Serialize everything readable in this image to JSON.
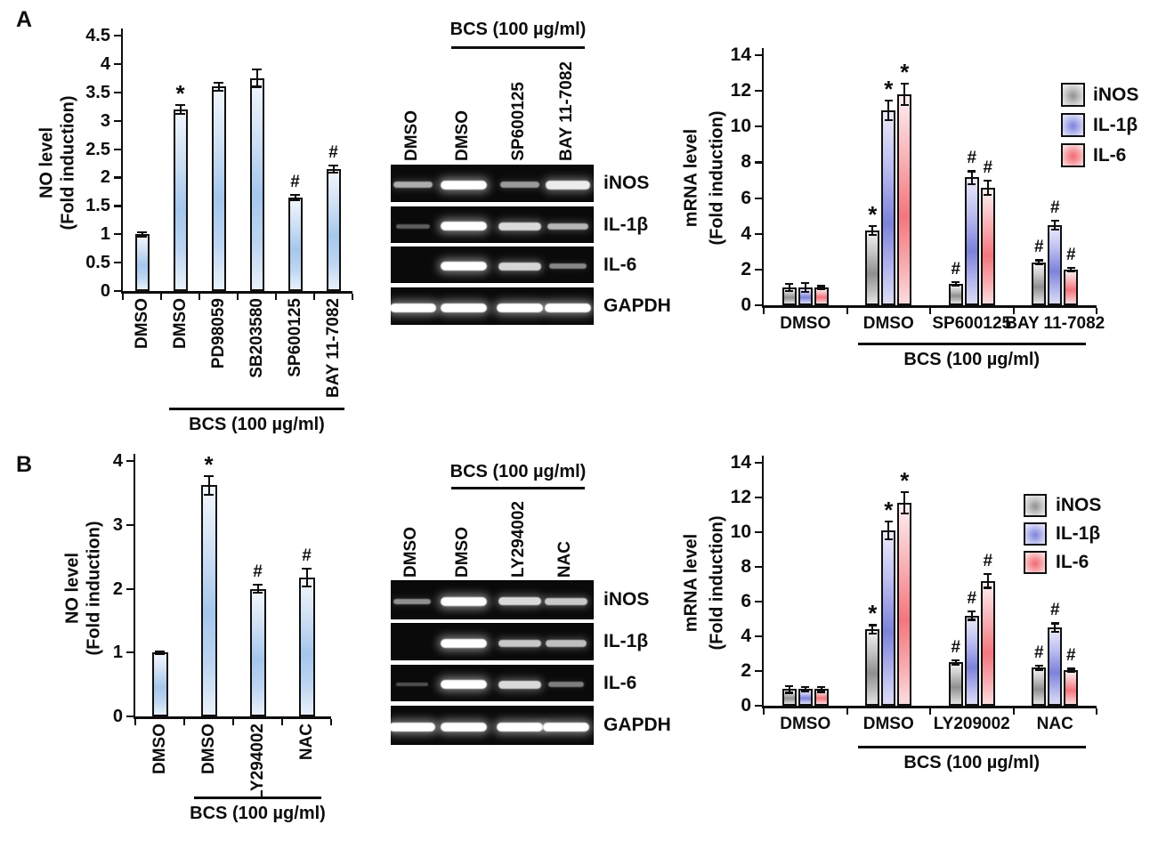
{
  "figure": {
    "panels": {
      "a": {
        "label": "A"
      },
      "b": {
        "label": "B"
      }
    }
  },
  "colors": {
    "axis": "#0d0d0d",
    "text": "#0d0d0d",
    "no_bar_mid_blue": "#a5c7ec",
    "inos_gray": "#8f8f8f",
    "il1b_purple": "#7d82da",
    "il6_red": "#f4767d",
    "gel_background": "#0a0a0a",
    "gel_band": "#ffffff"
  },
  "chart_data": [
    {
      "id": "panel_a_no_level",
      "type": "bar",
      "title": "",
      "ylabel": [
        "NO level",
        "(Fold induction)"
      ],
      "xlabel": "",
      "ylim": [
        0,
        4.5
      ],
      "yticks": [
        "0",
        "0.5",
        "1",
        "1.5",
        "2",
        "2.5",
        "3",
        "3.5",
        "4",
        "4.5"
      ],
      "grid": false,
      "categories": [
        "DMSO",
        "DMSO",
        "PD98059",
        "SB203580",
        "SP600125",
        "BAY 11-7082"
      ],
      "values": [
        1.0,
        3.2,
        3.6,
        3.75,
        1.65,
        2.15
      ],
      "errors": [
        0.04,
        0.08,
        0.07,
        0.15,
        0.05,
        0.06
      ],
      "sig": [
        "",
        "*",
        "",
        "",
        "#",
        "#"
      ],
      "bracket": {
        "from": 1,
        "to": 5,
        "label": "BCS (100 µg/ml)"
      }
    },
    {
      "id": "panel_a_mrna_level",
      "type": "bar",
      "title": "",
      "ylabel": [
        "mRNA level",
        "(Fold induction)"
      ],
      "xlabel": "",
      "ylim": [
        0,
        14
      ],
      "yticks": [
        "0",
        "2",
        "4",
        "6",
        "8",
        "10",
        "12",
        "14"
      ],
      "grid": false,
      "categories": [
        "DMSO",
        "DMSO",
        "SP600125",
        "BAY 11-7082"
      ],
      "series": [
        {
          "name": "iNOS",
          "color_key": "gray",
          "values": [
            1.0,
            4.2,
            1.2,
            2.4
          ],
          "errors": [
            0.2,
            0.25,
            0.08,
            0.12
          ],
          "sig": [
            "",
            "*",
            "#",
            "#"
          ]
        },
        {
          "name": "IL-1β",
          "color_key": "blue",
          "values": [
            1.0,
            10.9,
            7.15,
            4.5
          ],
          "errors": [
            0.25,
            0.55,
            0.35,
            0.25
          ],
          "sig": [
            "",
            "*",
            "#",
            "#"
          ]
        },
        {
          "name": "IL-6",
          "color_key": "red",
          "values": [
            1.0,
            11.8,
            6.6,
            2.0
          ],
          "errors": [
            0.08,
            0.6,
            0.4,
            0.1
          ],
          "sig": [
            "",
            "*",
            "#",
            "#"
          ]
        }
      ],
      "legend": [
        "iNOS",
        "IL-1β",
        "IL-6"
      ],
      "legend_position": "upper right",
      "bracket": {
        "from": 1,
        "to": 3,
        "label": "BCS (100 µg/ml)"
      }
    },
    {
      "id": "panel_b_no_level",
      "type": "bar",
      "title": "",
      "ylabel": [
        "NO level",
        "(Fold induction)"
      ],
      "xlabel": "",
      "ylim": [
        0,
        4
      ],
      "yticks": [
        "0",
        "1",
        "2",
        "3",
        "4"
      ],
      "grid": false,
      "categories": [
        "DMSO",
        "DMSO",
        "LY294002",
        "NAC"
      ],
      "values": [
        1.0,
        3.62,
        2.0,
        2.18
      ],
      "errors": [
        0.02,
        0.15,
        0.06,
        0.14
      ],
      "sig": [
        "",
        "*",
        "#",
        "#"
      ],
      "bracket": {
        "from": 1,
        "to": 3,
        "label": "BCS (100 µg/ml)"
      }
    },
    {
      "id": "panel_b_mrna_level",
      "type": "bar",
      "title": "",
      "ylabel": [
        "mRNA level",
        "(Fold induction)"
      ],
      "xlabel": "",
      "ylim": [
        0,
        14
      ],
      "yticks": [
        "0",
        "2",
        "4",
        "6",
        "8",
        "10",
        "12",
        "14"
      ],
      "grid": false,
      "categories": [
        "DMSO",
        "DMSO",
        "LY209002",
        "NAC"
      ],
      "series": [
        {
          "name": "iNOS",
          "color_key": "gray",
          "values": [
            0.95,
            4.4,
            2.5,
            2.2
          ],
          "errors": [
            0.2,
            0.25,
            0.12,
            0.12
          ],
          "sig": [
            "",
            "*",
            "#",
            "#"
          ]
        },
        {
          "name": "IL-1β",
          "color_key": "blue",
          "values": [
            0.95,
            10.1,
            5.2,
            4.5
          ],
          "errors": [
            0.12,
            0.5,
            0.25,
            0.25
          ],
          "sig": [
            "",
            "*",
            "#",
            "#"
          ]
        },
        {
          "name": "IL-6",
          "color_key": "red",
          "values": [
            0.95,
            11.7,
            7.2,
            2.05
          ],
          "errors": [
            0.15,
            0.6,
            0.4,
            0.08
          ],
          "sig": [
            "",
            "*",
            "#",
            "#"
          ]
        }
      ],
      "legend": [
        "iNOS",
        "IL-1β",
        "IL-6"
      ],
      "legend_position": "upper right",
      "bracket": {
        "from": 1,
        "to": 3,
        "label": "BCS (100 µg/ml)"
      }
    }
  ],
  "gels": [
    {
      "id": "panel_a_gel",
      "header": "BCS (100 µg/ml)",
      "lanes": [
        "DMSO",
        "DMSO",
        "SP600125",
        "BAY 11-7082"
      ],
      "rows": [
        {
          "label": "iNOS",
          "band_intensities": [
            0.55,
            1.0,
            0.45,
            0.9
          ]
        },
        {
          "label": "IL-1β",
          "band_intensities": [
            0.12,
            1.0,
            0.8,
            0.6
          ]
        },
        {
          "label": "IL-6",
          "band_intensities": [
            0.0,
            1.0,
            0.78,
            0.35
          ]
        },
        {
          "label": "GAPDH",
          "band_intensities": [
            1.0,
            1.0,
            1.0,
            1.0
          ]
        }
      ]
    },
    {
      "id": "panel_b_gel",
      "header": "BCS (100 µg/ml)",
      "lanes": [
        "DMSO",
        "DMSO",
        "LY294002",
        "NAC"
      ],
      "rows": [
        {
          "label": "iNOS",
          "band_intensities": [
            0.4,
            1.0,
            0.8,
            0.7
          ]
        },
        {
          "label": "IL-1β",
          "band_intensities": [
            0.0,
            1.0,
            0.7,
            0.65
          ]
        },
        {
          "label": "IL-6",
          "band_intensities": [
            0.05,
            1.0,
            0.8,
            0.3
          ]
        },
        {
          "label": "GAPDH",
          "band_intensities": [
            1.0,
            1.0,
            1.0,
            1.0
          ]
        }
      ]
    }
  ]
}
